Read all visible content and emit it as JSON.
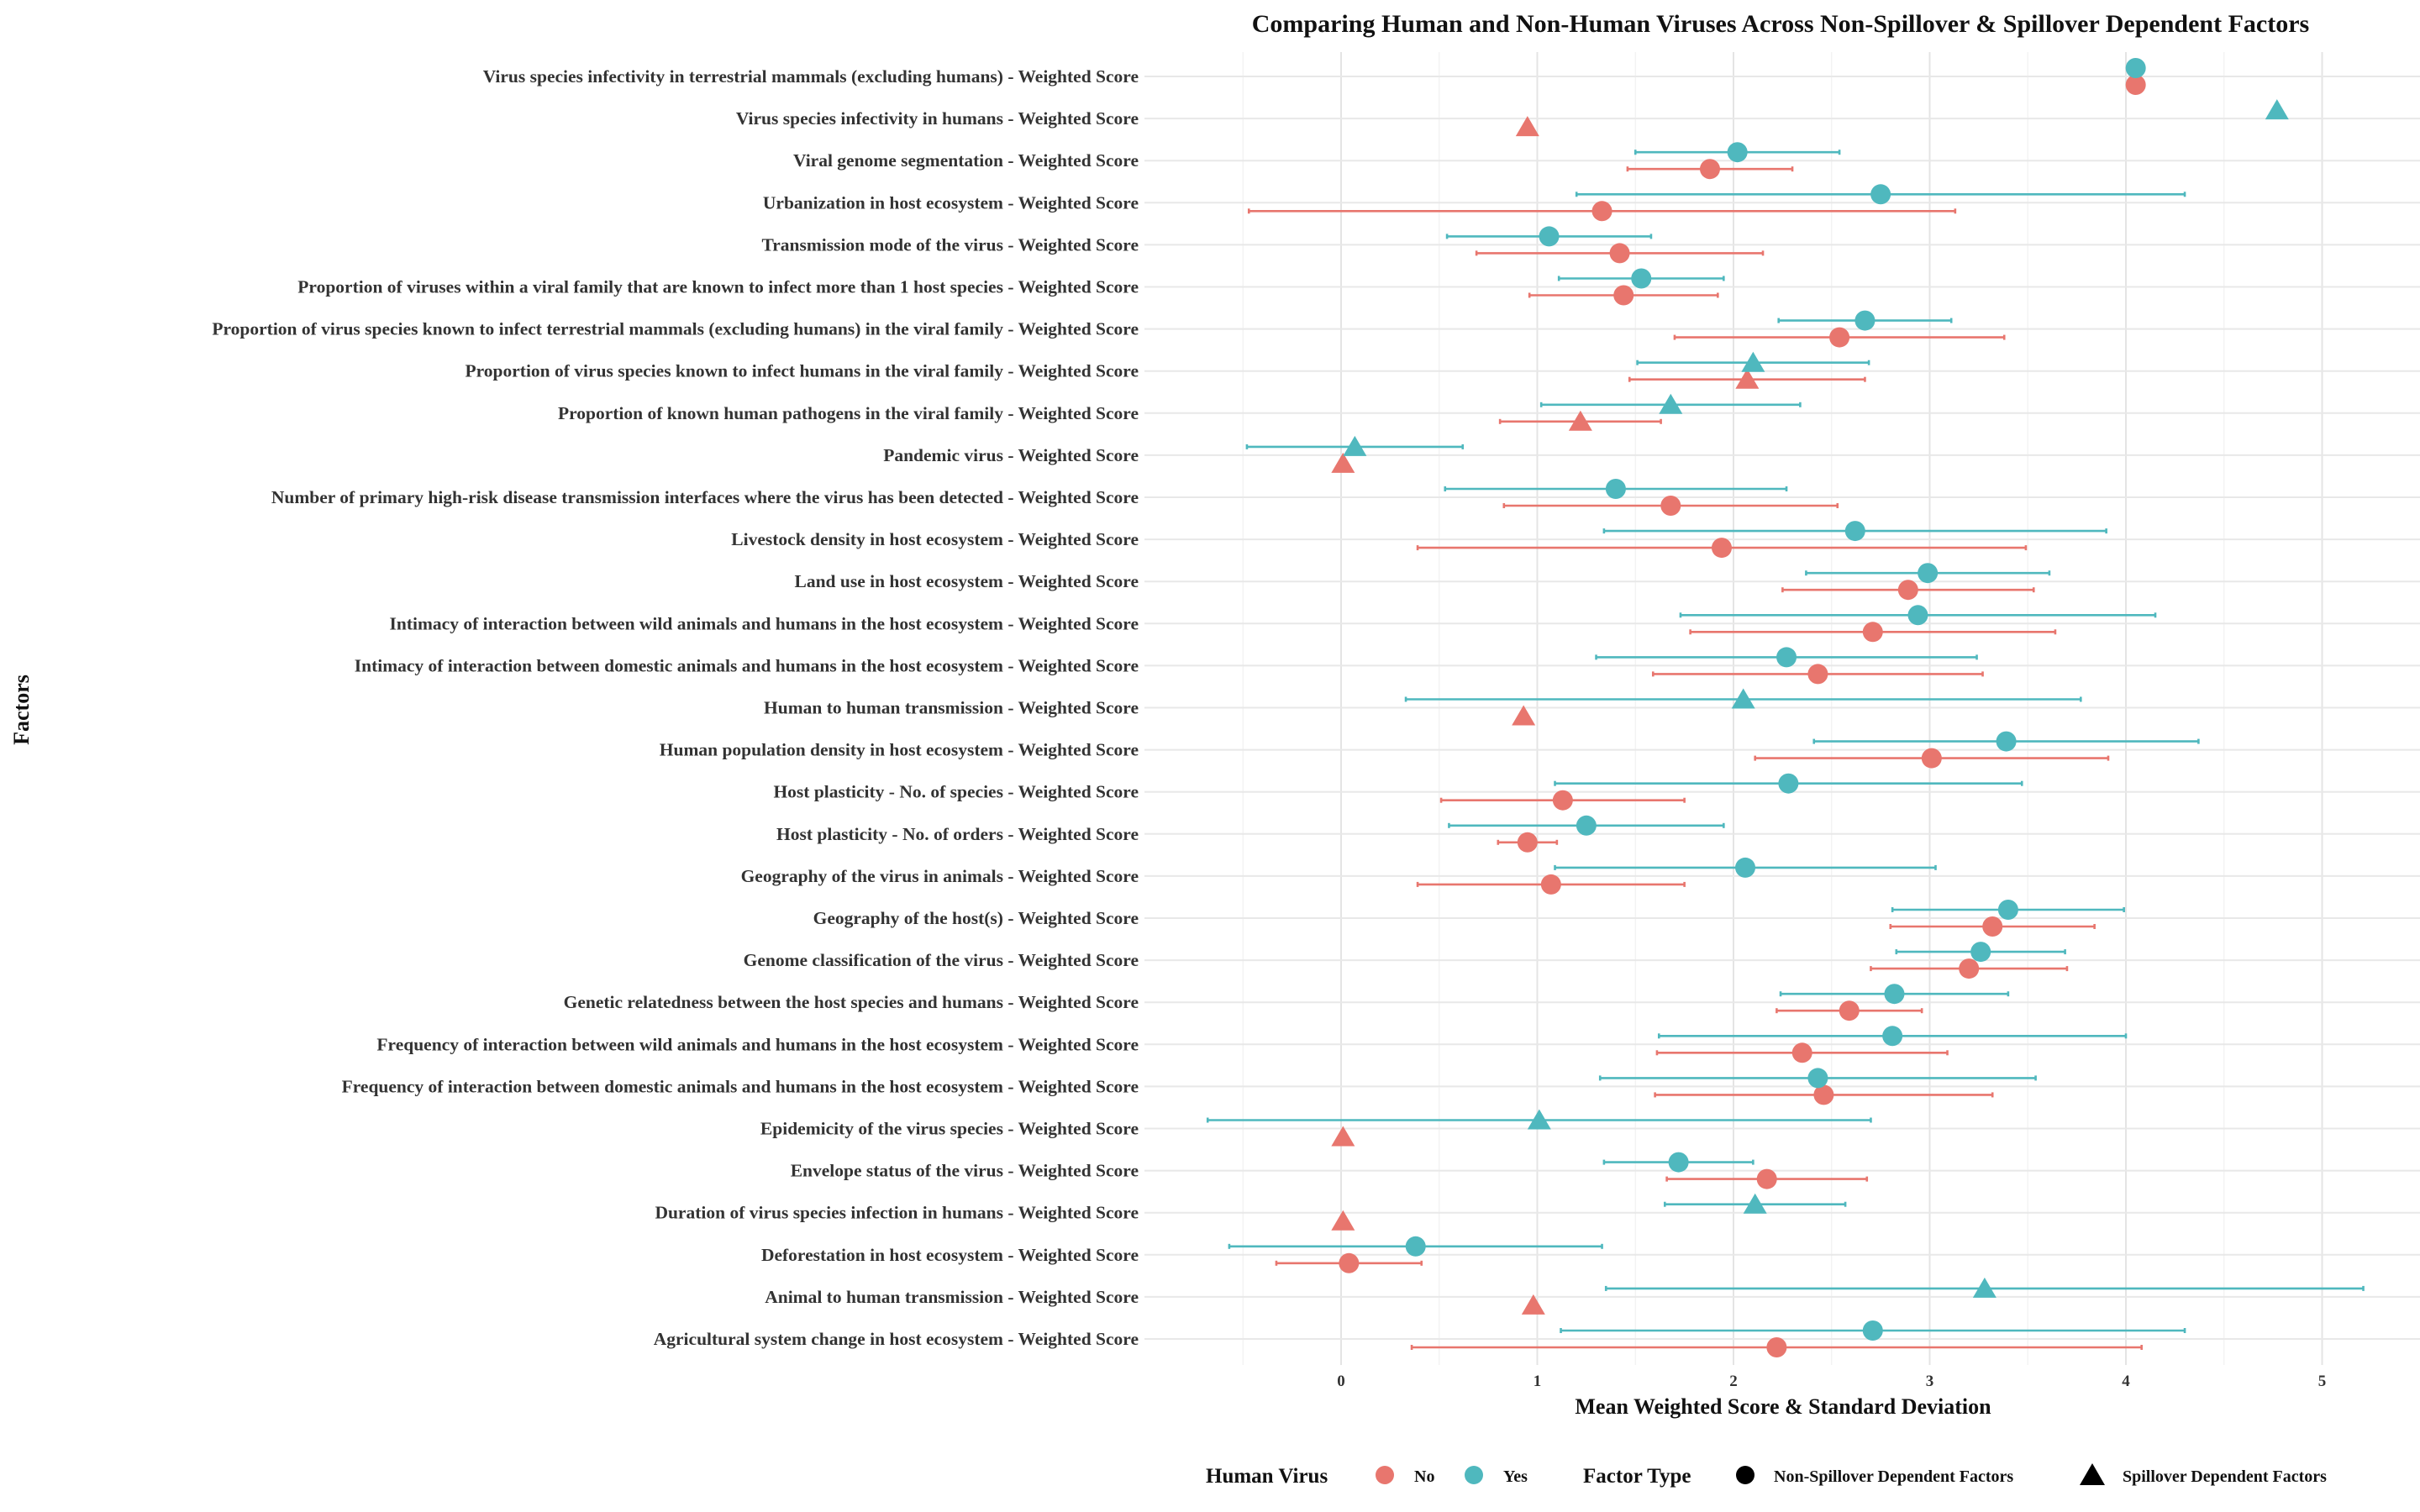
{
  "chart_data": {
    "type": "scatter",
    "title": "Comparing Human and Non-Human Viruses Across Non-Spillover & Spillover Dependent Factors",
    "xlabel": "Mean Weighted Score & Standard Deviation",
    "ylabel": "Factors",
    "xlim": [
      -0.7,
      5.3
    ],
    "xticks": [
      0,
      1,
      2,
      3,
      4,
      5
    ],
    "grid": true,
    "legend_position": "bottom",
    "legend": {
      "color_title": "Human Virus",
      "color_items": [
        {
          "label": "No",
          "color": "#E8766E"
        },
        {
          "label": "Yes",
          "color": "#4FB8BE"
        }
      ],
      "shape_title": "Factor Type",
      "shape_items": [
        {
          "label": "Non-Spillover Dependent Factors",
          "shape": "circle"
        },
        {
          "label": "Spillover Dependent Factors",
          "shape": "triangle"
        }
      ]
    },
    "factors": [
      {
        "label": "Virus species infectivity in terrestrial mammals (excluding humans) - Weighted Score",
        "type": "circle",
        "no": {
          "mean": 4.05,
          "sd": 0
        },
        "yes": {
          "mean": 4.05,
          "sd": 0
        }
      },
      {
        "label": "Virus species infectivity in humans - Weighted Score",
        "type": "triangle",
        "no": {
          "mean": 0.95,
          "sd": 0
        },
        "yes": {
          "mean": 4.77,
          "sd": 0
        }
      },
      {
        "label": "Viral genome segmentation - Weighted Score",
        "type": "circle",
        "no": {
          "mean": 1.88,
          "sd": 0.42
        },
        "yes": {
          "mean": 2.02,
          "sd": 0.52
        }
      },
      {
        "label": "Urbanization in host ecosystem - Weighted Score",
        "type": "circle",
        "no": {
          "mean": 1.33,
          "sd": 1.8
        },
        "yes": {
          "mean": 2.75,
          "sd": 1.55
        }
      },
      {
        "label": "Transmission mode of the virus - Weighted Score",
        "type": "circle",
        "no": {
          "mean": 1.42,
          "sd": 0.73
        },
        "yes": {
          "mean": 1.06,
          "sd": 0.52
        }
      },
      {
        "label": "Proportion of viruses within a viral family that are known to infect more than 1 host species - Weighted Score",
        "type": "circle",
        "no": {
          "mean": 1.44,
          "sd": 0.48
        },
        "yes": {
          "mean": 1.53,
          "sd": 0.42
        }
      },
      {
        "label": "Proportion of virus species known to infect terrestrial mammals (excluding humans) in the viral family - Weighted Score",
        "type": "circle",
        "no": {
          "mean": 2.54,
          "sd": 0.84
        },
        "yes": {
          "mean": 2.67,
          "sd": 0.44
        }
      },
      {
        "label": "Proportion of virus species known to infect humans in the viral family - Weighted Score",
        "type": "triangle",
        "no": {
          "mean": 2.07,
          "sd": 0.6
        },
        "yes": {
          "mean": 2.1,
          "sd": 0.59
        }
      },
      {
        "label": "Proportion of known human pathogens in the viral family - Weighted Score",
        "type": "triangle",
        "no": {
          "mean": 1.22,
          "sd": 0.41
        },
        "yes": {
          "mean": 1.68,
          "sd": 0.66
        }
      },
      {
        "label": "Pandemic virus - Weighted Score",
        "type": "triangle",
        "no": {
          "mean": 0.01,
          "sd": 0
        },
        "yes": {
          "mean": 0.07,
          "sd": 0.55
        }
      },
      {
        "label": "Number of primary high-risk disease transmission interfaces where the virus has been detected - Weighted Score",
        "type": "circle",
        "no": {
          "mean": 1.68,
          "sd": 0.85
        },
        "yes": {
          "mean": 1.4,
          "sd": 0.87
        }
      },
      {
        "label": "Livestock density in host ecosystem - Weighted Score",
        "type": "circle",
        "no": {
          "mean": 1.94,
          "sd": 1.55
        },
        "yes": {
          "mean": 2.62,
          "sd": 1.28
        }
      },
      {
        "label": "Land use in host ecosystem - Weighted Score",
        "type": "circle",
        "no": {
          "mean": 2.89,
          "sd": 0.64
        },
        "yes": {
          "mean": 2.99,
          "sd": 0.62
        }
      },
      {
        "label": "Intimacy of interaction between wild animals and humans in the host ecosystem - Weighted Score",
        "type": "circle",
        "no": {
          "mean": 2.71,
          "sd": 0.93
        },
        "yes": {
          "mean": 2.94,
          "sd": 1.21
        }
      },
      {
        "label": "Intimacy of interaction between domestic animals and humans in the host ecosystem - Weighted Score",
        "type": "circle",
        "no": {
          "mean": 2.43,
          "sd": 0.84
        },
        "yes": {
          "mean": 2.27,
          "sd": 0.97
        }
      },
      {
        "label": "Human to human transmission - Weighted Score",
        "type": "triangle",
        "no": {
          "mean": 0.93,
          "sd": 0
        },
        "yes": {
          "mean": 2.05,
          "sd": 1.72
        }
      },
      {
        "label": "Human population density in host ecosystem - Weighted Score",
        "type": "circle",
        "no": {
          "mean": 3.01,
          "sd": 0.9
        },
        "yes": {
          "mean": 3.39,
          "sd": 0.98
        }
      },
      {
        "label": "Host plasticity - No. of species - Weighted Score",
        "type": "circle",
        "no": {
          "mean": 1.13,
          "sd": 0.62
        },
        "yes": {
          "mean": 2.28,
          "sd": 1.19
        }
      },
      {
        "label": "Host plasticity - No. of orders - Weighted Score",
        "type": "circle",
        "no": {
          "mean": 0.95,
          "sd": 0.15
        },
        "yes": {
          "mean": 1.25,
          "sd": 0.7
        }
      },
      {
        "label": "Geography of the virus in animals - Weighted Score",
        "type": "circle",
        "no": {
          "mean": 1.07,
          "sd": 0.68
        },
        "yes": {
          "mean": 2.06,
          "sd": 0.97
        }
      },
      {
        "label": "Geography of the host(s) - Weighted Score",
        "type": "circle",
        "no": {
          "mean": 3.32,
          "sd": 0.52
        },
        "yes": {
          "mean": 3.4,
          "sd": 0.59
        }
      },
      {
        "label": "Genome classification of the virus - Weighted Score",
        "type": "circle",
        "no": {
          "mean": 3.2,
          "sd": 0.5
        },
        "yes": {
          "mean": 3.26,
          "sd": 0.43
        }
      },
      {
        "label": "Genetic relatedness between the host species and humans - Weighted Score",
        "type": "circle",
        "no": {
          "mean": 2.59,
          "sd": 0.37
        },
        "yes": {
          "mean": 2.82,
          "sd": 0.58
        }
      },
      {
        "label": "Frequency of interaction between wild animals and humans in the host ecosystem - Weighted Score",
        "type": "circle",
        "no": {
          "mean": 2.35,
          "sd": 0.74
        },
        "yes": {
          "mean": 2.81,
          "sd": 1.19
        }
      },
      {
        "label": "Frequency of interaction between domestic animals and humans in the host ecosystem - Weighted Score",
        "type": "circle",
        "no": {
          "mean": 2.46,
          "sd": 0.86
        },
        "yes": {
          "mean": 2.43,
          "sd": 1.11
        }
      },
      {
        "label": "Epidemicity of the virus species - Weighted Score",
        "type": "triangle",
        "no": {
          "mean": 0.01,
          "sd": 0
        },
        "yes": {
          "mean": 1.01,
          "sd": 1.69
        }
      },
      {
        "label": "Envelope status of the virus - Weighted Score",
        "type": "circle",
        "no": {
          "mean": 2.17,
          "sd": 0.51
        },
        "yes": {
          "mean": 1.72,
          "sd": 0.38
        }
      },
      {
        "label": "Duration of virus species infection in humans - Weighted Score",
        "type": "triangle",
        "no": {
          "mean": 0.01,
          "sd": 0
        },
        "yes": {
          "mean": 2.11,
          "sd": 0.46
        }
      },
      {
        "label": "Deforestation in host ecosystem - Weighted Score",
        "type": "circle",
        "no": {
          "mean": 0.04,
          "sd": 0.37
        },
        "yes": {
          "mean": 0.38,
          "sd": 0.95
        }
      },
      {
        "label": "Animal to human transmission - Weighted Score",
        "type": "triangle",
        "no": {
          "mean": 0.98,
          "sd": 0
        },
        "yes": {
          "mean": 3.28,
          "sd": 1.93
        }
      },
      {
        "label": "Agricultural system change in host ecosystem - Weighted Score",
        "type": "circle",
        "no": {
          "mean": 2.22,
          "sd": 1.86
        },
        "yes": {
          "mean": 2.71,
          "sd": 1.59
        }
      }
    ]
  }
}
